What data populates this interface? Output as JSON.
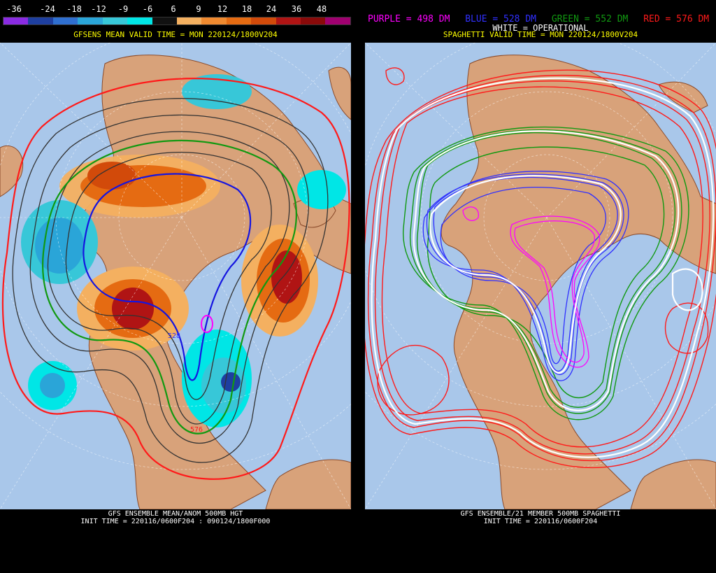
{
  "left": {
    "colorbar": {
      "labels": [
        "-36",
        "-24",
        "-18",
        "-12",
        "-9",
        "-6",
        "6",
        "9",
        "12",
        "18",
        "24",
        "36",
        "48"
      ],
      "colors": [
        "#8a2be2",
        "#1e3fa0",
        "#2f6fd0",
        "#2aa5d8",
        "#37c7d8",
        "#00e6e6",
        "#111111",
        "#f4b060",
        "#f08a30",
        "#e56b12",
        "#d24a0a",
        "#b01414",
        "#8a0a0a",
        "#a00070"
      ]
    },
    "title": "GFSENS MEAN VALID TIME = MON 220124/1800V204",
    "footer_line1": "GFS ENSEMBLE MEAN/ANOM 500MB HGT",
    "footer_line2": "INIT TIME = 220116/0600F204 : 090124/1800F000",
    "contour_labels": [
      "528",
      "576"
    ]
  },
  "right": {
    "legend": [
      {
        "label": "PURPLE = 498 DM",
        "color": "#ff00ff"
      },
      {
        "label": "BLUE = 528 DM",
        "color": "#3030ff"
      },
      {
        "label": "GREEN = 552 DM",
        "color": "#119911"
      },
      {
        "label": "RED = 576 DM",
        "color": "#ff1a1a"
      }
    ],
    "white_label": "WHITE = OPERATIONAL",
    "title": "SPAGHETTI VALID TIME = MON 220124/1800V204",
    "footer_line1": "GFS ENSEMBLE/21 MEMBER 500MB SPAGHETTI",
    "footer_line2": "INIT TIME = 220116/0600F204"
  }
}
